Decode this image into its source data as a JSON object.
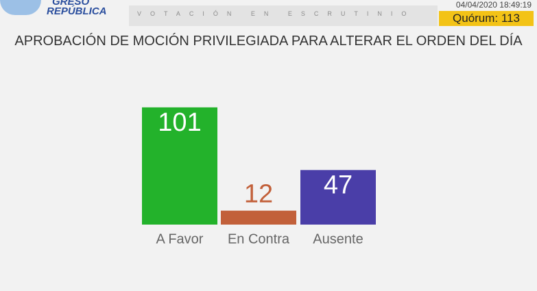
{
  "header": {
    "logo": [
      "GRESO",
      "REPÚBLICA"
    ],
    "status": "VOTACIÓN EN ESCRUTINIO",
    "timestamp": "04/04/2020 18:49:19",
    "quorum": "Quórum: 113"
  },
  "chart_data": {
    "type": "bar",
    "title": "APROBACIÓN DE MOCIÓN PRIVILEGIADA PARA ALTERAR EL ORDEN DEL DÍA",
    "categories": [
      "A Favor",
      "En Contra",
      "Ausente"
    ],
    "values": [
      101,
      12,
      47
    ],
    "colors": [
      "#23b22b",
      "#c2603a",
      "#4a3ea8"
    ]
  }
}
